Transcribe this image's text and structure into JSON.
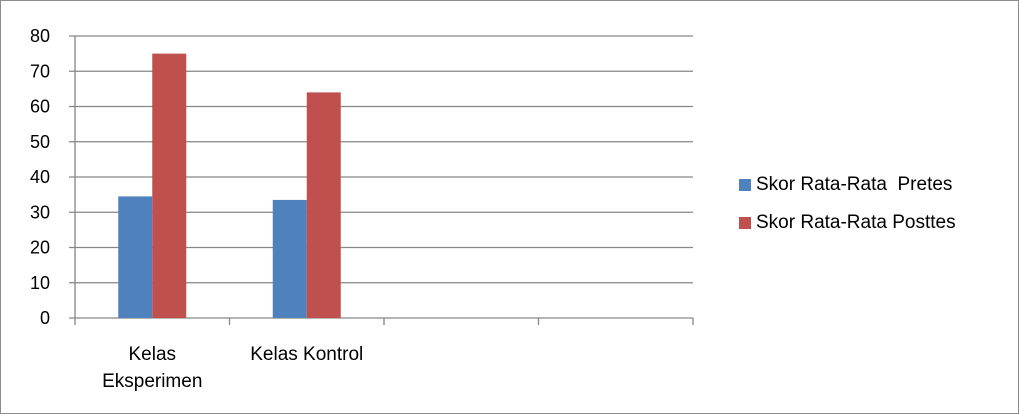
{
  "chart_data": {
    "type": "bar",
    "title": "",
    "xlabel": "",
    "ylabel": "",
    "ylim": [
      0,
      80
    ],
    "yticks": [
      0,
      10,
      20,
      30,
      40,
      50,
      60,
      70,
      80
    ],
    "grid": true,
    "legend_position": "right",
    "categories": [
      [
        "Kelas",
        "Eksperimen"
      ],
      [
        "Kelas Kontrol"
      ],
      [
        ""
      ],
      [
        ""
      ]
    ],
    "series": [
      {
        "name": "Skor Rata-Rata  Pretes",
        "color": "#4f81bd",
        "values": [
          34.5,
          33.5,
          null,
          null
        ]
      },
      {
        "name": "Skor Rata-Rata Posttes",
        "color": "#c0504d",
        "values": [
          75,
          64,
          null,
          null
        ]
      }
    ]
  }
}
